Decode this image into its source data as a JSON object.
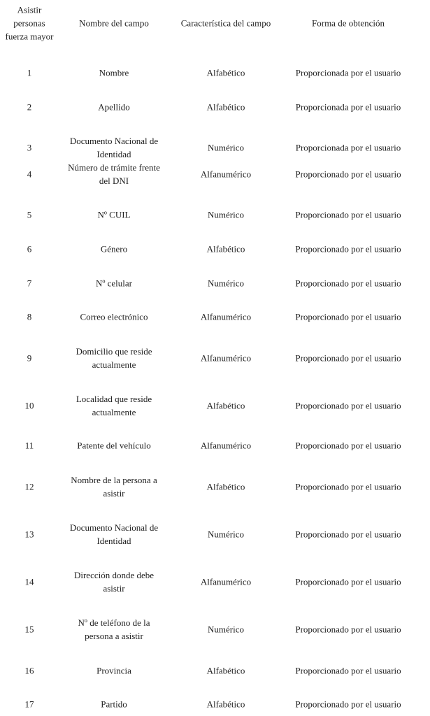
{
  "table": {
    "headers": [
      "Asistir\npersonas\nfuerza mayor",
      "Nombre del campo",
      "Característica del campo",
      "Forma de obtención"
    ],
    "rows": [
      [
        "1",
        "Nombre",
        "Alfabético",
        "Proporcionada por el usuario"
      ],
      [
        "2",
        "Apellido",
        "Alfabético",
        "Proporcionada por el usuario"
      ],
      [
        "3",
        "Documento Nacional de\nIdentidad",
        "Numérico",
        "Proporcionada por el usuario"
      ],
      [
        "4",
        "Número de trámite frente\ndel DNI",
        "Alfanumérico",
        "Proporcionado por el usuario"
      ],
      [
        "5",
        "Nº CUIL",
        "Numérico",
        "Proporcionado por el usuario"
      ],
      [
        "6",
        "Género",
        "Alfabético",
        "Proporcionado por el usuario"
      ],
      [
        "7",
        "Nº celular",
        "Numérico",
        "Proporcionado por el usuario"
      ],
      [
        "8",
        "Correo electrónico",
        "Alfanumérico",
        "Proporcionado por el usuario"
      ],
      [
        "9",
        "Domicilio que reside\nactualmente",
        "Alfanumérico",
        "Proporcionado por el usuario"
      ],
      [
        "10",
        "Localidad que reside\nactualmente",
        "Alfabético",
        "Proporcionado por el usuario"
      ],
      [
        "11",
        "Patente del vehículo",
        "Alfanumérico",
        "Proporcionado por el usuario"
      ],
      [
        "12",
        "Nombre de la persona a\nasistir",
        "Alfabético",
        "Proporcionado por el usuario"
      ],
      [
        "13",
        "Documento Nacional de\nIdentidad",
        "Numérico",
        "Proporcionado por el usuario"
      ],
      [
        "14",
        "Dirección donde debe\nasistir",
        "Alfanumérico",
        "Proporcionado por el usuario"
      ],
      [
        "15",
        "Nº de teléfono de la\npersona a asistir",
        "Numérico",
        "Proporcionado por el usuario"
      ],
      [
        "16",
        "Provincia",
        "Alfabético",
        "Proporcionado por el usuario"
      ],
      [
        "17",
        "Partido",
        "Alfabético",
        "Proporcionado por el usuario"
      ]
    ]
  }
}
